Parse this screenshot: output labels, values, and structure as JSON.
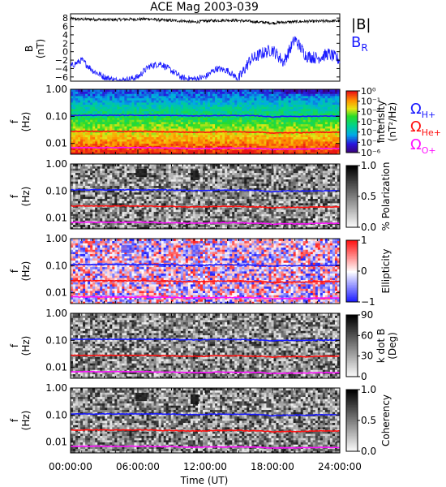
{
  "title": "ACE Mag 2003-039",
  "x_ticks": [
    "00:00:00",
    "06:00:00",
    "12:00:00",
    "18:00:00",
    "24:00:00"
  ],
  "x_label": "Time (UT)",
  "gyro_colors": {
    "h": "#1a1aff",
    "he": "#ff1010",
    "o": "#ff10ff"
  },
  "top_panel": {
    "ylabel_line1": "B",
    "ylabel_line2": "(nT)",
    "yticks": [
      "8",
      "6",
      "4",
      "2",
      "0",
      "−2",
      "−4",
      "−6"
    ],
    "ylim": [
      -7,
      9
    ],
    "legend_b": "|B|",
    "legend_br": "B",
    "legend_br_sub": "R",
    "b_color": "#000000",
    "br_color": "#1a1aff"
  },
  "freq_label_line1": "f",
  "freq_label_line2": "(Hz)",
  "freq_ticks": [
    "1.00",
    "0.10",
    "0.01"
  ],
  "panels": [
    {
      "id": "intensity",
      "colormap": "rainbow",
      "colorbar_ticks": [
        "10⁰",
        "10⁻¹",
        "10⁻²",
        "10⁻³",
        "10⁻⁴",
        "10⁻⁵",
        "10⁻⁶"
      ],
      "colorbar_label": "Intensity",
      "colorbar_label2": "(nT²/Hz)",
      "legend": [
        {
          "main": "Ω",
          "sub": "H+"
        },
        {
          "main": "Ω",
          "sub": "He+"
        },
        {
          "main": "Ω",
          "sub": "O+"
        }
      ]
    },
    {
      "id": "polarization",
      "colormap": "gray",
      "colorbar_ticks": [
        "1.0",
        "0.5",
        "0.0"
      ],
      "colorbar_label": "% Polarization",
      "colorbar_label2": ""
    },
    {
      "id": "ellipticity",
      "colormap": "bwr",
      "colorbar_ticks": [
        "1",
        "0",
        "−1"
      ],
      "colorbar_label": "Ellipticity",
      "colorbar_label2": ""
    },
    {
      "id": "kdotb",
      "colormap": "gray",
      "colorbar_ticks": [
        "90",
        "60",
        "30",
        "0"
      ],
      "colorbar_label": "k dot B",
      "colorbar_label2": "(Deg)"
    },
    {
      "id": "coherency",
      "colormap": "gray",
      "colorbar_ticks": [
        "1.0",
        "0.5",
        "0.0"
      ],
      "colorbar_label": "Coherency",
      "colorbar_label2": ""
    }
  ],
  "chart_data": {
    "type": "line",
    "title": "ACE Mag 2003-039",
    "xlabel": "Time (UT)",
    "x_hours": [
      0,
      1,
      2,
      3,
      4,
      5,
      6,
      7,
      8,
      9,
      10,
      11,
      12,
      13,
      14,
      15,
      16,
      17,
      18,
      19,
      20,
      21,
      22,
      23,
      24
    ],
    "series": [
      {
        "name": "|B|",
        "values": [
          7.8,
          7.7,
          7.7,
          7.6,
          7.6,
          7.7,
          7.7,
          7.8,
          7.5,
          7.4,
          7.3,
          7.0,
          7.3,
          7.4,
          7.5,
          7.4,
          7.2,
          7.0,
          6.8,
          7.0,
          7.1,
          7.2,
          7.2,
          7.3,
          7.3
        ]
      },
      {
        "name": "B_R",
        "values": [
          -3.5,
          -2.0,
          -4.5,
          -6.0,
          -6.8,
          -6.7,
          -6.0,
          -3.5,
          -2.8,
          -4.5,
          -6.3,
          -6.5,
          -6.0,
          -4.0,
          -4.5,
          -6.5,
          -2.0,
          -0.5,
          0.5,
          -2.5,
          3.0,
          -1.0,
          -1.5,
          -0.5,
          -2.0
        ]
      },
      {
        "name": "Ω H+ (Hz)",
        "values": [
          0.11,
          0.11,
          0.11,
          0.11,
          0.11,
          0.11,
          0.11,
          0.11,
          0.11,
          0.108,
          0.106,
          0.104,
          0.105,
          0.108,
          0.108,
          0.107,
          0.106,
          0.103,
          0.095,
          0.1,
          0.1,
          0.1,
          0.102,
          0.102,
          0.103
        ]
      },
      {
        "name": "Ω He+ (Hz)",
        "values": [
          0.028,
          0.028,
          0.028,
          0.028,
          0.028,
          0.028,
          0.028,
          0.028,
          0.027,
          0.027,
          0.026,
          0.026,
          0.026,
          0.027,
          0.027,
          0.027,
          0.026,
          0.026,
          0.024,
          0.025,
          0.025,
          0.025,
          0.026,
          0.026,
          0.026
        ]
      },
      {
        "name": "Ω O+ (Hz)",
        "values": [
          0.007,
          0.007,
          0.007,
          0.007,
          0.007,
          0.007,
          0.007,
          0.007,
          0.0068,
          0.0068,
          0.0066,
          0.0065,
          0.0065,
          0.0067,
          0.0067,
          0.0067,
          0.0066,
          0.0065,
          0.006,
          0.0062,
          0.0062,
          0.0062,
          0.0064,
          0.0064,
          0.0064
        ]
      }
    ],
    "b_ylim": [
      -7,
      9
    ],
    "f_ylim_hz": [
      0.004,
      1.0
    ],
    "f_scale": "log"
  }
}
